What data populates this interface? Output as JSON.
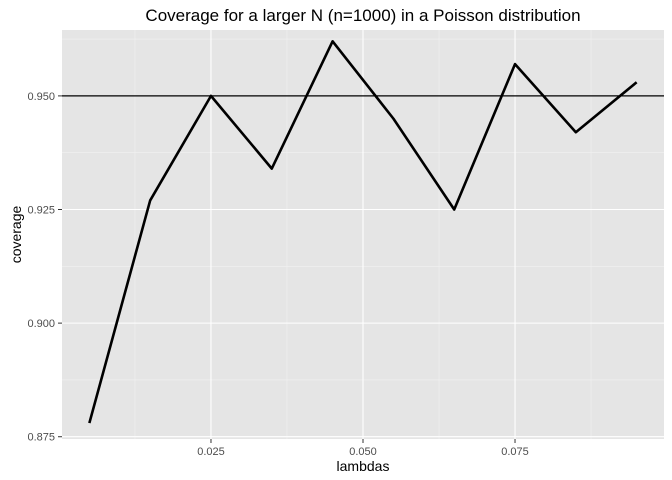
{
  "chart_data": {
    "type": "line",
    "title": "Coverage for a larger N (n=1000) in a Poisson distribution",
    "xlabel": "lambdas",
    "ylabel": "coverage",
    "x": [
      0.005,
      0.015,
      0.025,
      0.035,
      0.045,
      0.055,
      0.065,
      0.075,
      0.085,
      0.095
    ],
    "series": [
      {
        "values": [
          0.878,
          0.927,
          0.95,
          0.934,
          0.962,
          0.945,
          0.925,
          0.957,
          0.942,
          0.953
        ]
      }
    ],
    "reference_line": {
      "y": 0.95
    },
    "xlim": [
      0.0005,
      0.0995
    ],
    "ylim": [
      0.8745,
      0.9645
    ],
    "x_ticks": [
      0.025,
      0.05,
      0.075
    ],
    "x_tick_labels": [
      "0.025",
      "0.050",
      "0.075"
    ],
    "y_ticks": [
      0.875,
      0.9,
      0.925,
      0.95
    ],
    "y_tick_labels": [
      "0.875",
      "0.900",
      "0.925",
      "0.950"
    ],
    "grid": true,
    "colors": {
      "panel_background": "#e5e5e5",
      "grid_major": "#ffffff",
      "grid_minor": "#f2f2f2",
      "line": "#000000",
      "tick_text": "#4d4d4d"
    }
  }
}
